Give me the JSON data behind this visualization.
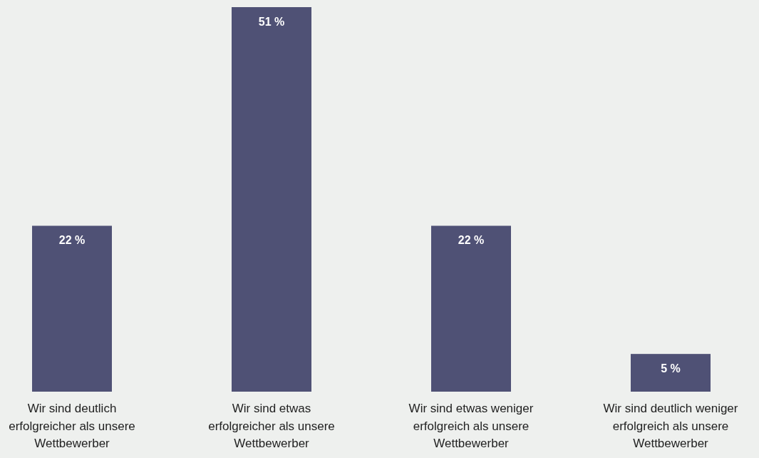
{
  "chart_data": {
    "type": "bar",
    "categories": [
      "Wir sind deutlich erfolgreicher als unsere Wettbewerber",
      "Wir sind etwas erfolgreicher als unsere Wettbewerber",
      "Wir sind etwas weniger erfolgreich als unsere Wettbewerber",
      "Wir sind deutlich weniger erfolgreich als unsere Wettbewerber"
    ],
    "values": [
      22,
      51,
      22,
      5
    ],
    "value_labels": [
      "22 %",
      "51 %",
      "22 %",
      "5 %"
    ],
    "color": "#4f5175",
    "relative": false
  }
}
